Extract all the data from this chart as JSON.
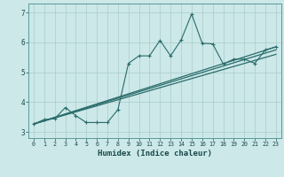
{
  "xlabel": "Humidex (Indice chaleur)",
  "ylabel": "",
  "bg_color": "#cce8e8",
  "grid_color": "#aacccc",
  "line_color": "#2a6b6b",
  "xlim": [
    -0.5,
    23.5
  ],
  "ylim": [
    2.8,
    7.3
  ],
  "xticks": [
    0,
    1,
    2,
    3,
    4,
    5,
    6,
    7,
    8,
    9,
    10,
    11,
    12,
    13,
    14,
    15,
    16,
    17,
    18,
    19,
    20,
    21,
    22,
    23
  ],
  "yticks": [
    3,
    4,
    5,
    6,
    7
  ],
  "line1_x": [
    0,
    1,
    2,
    3,
    4,
    5,
    6,
    7,
    8,
    9,
    10,
    11,
    12,
    13,
    14,
    15,
    16,
    17,
    18,
    19,
    20,
    21,
    22,
    23
  ],
  "line1_y": [
    3.27,
    3.42,
    3.45,
    3.82,
    3.55,
    3.32,
    3.32,
    3.32,
    3.75,
    5.3,
    5.55,
    5.55,
    6.07,
    5.55,
    6.08,
    6.95,
    5.97,
    5.95,
    5.28,
    5.44,
    5.44,
    5.3,
    5.75,
    5.85
  ],
  "line2_x": [
    0,
    23
  ],
  "line2_y": [
    3.27,
    5.85
  ],
  "line3_x": [
    0,
    23
  ],
  "line3_y": [
    3.27,
    5.75
  ],
  "line4_x": [
    0,
    23
  ],
  "line4_y": [
    3.27,
    5.6
  ]
}
